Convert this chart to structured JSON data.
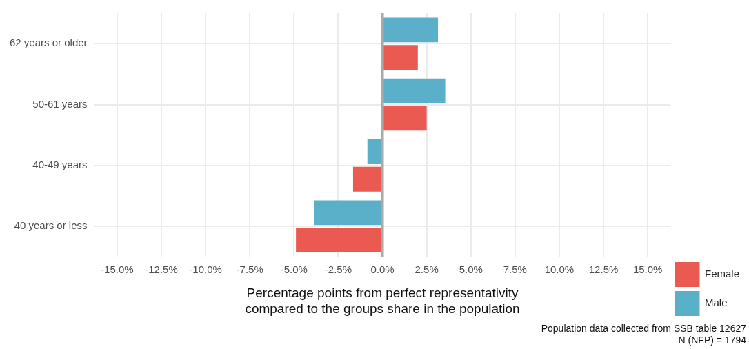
{
  "chart_data": {
    "type": "bar",
    "orientation": "horizontal",
    "categories": [
      "62 years or older",
      "50-61 years",
      "40-49 years",
      "40 years or less"
    ],
    "series": [
      {
        "name": "Female",
        "color": "#eb5a50",
        "values": [
          2.0,
          2.5,
          -1.66,
          -4.89
        ]
      },
      {
        "name": "Male",
        "color": "#5ab0c8",
        "values": [
          3.14,
          3.55,
          -0.85,
          -3.86
        ]
      }
    ],
    "xlim": [
      -16.3,
      16.3
    ],
    "xticks": [
      {
        "value": -15,
        "label": "-15.0%"
      },
      {
        "value": -12.5,
        "label": "-12.5%"
      },
      {
        "value": -10,
        "label": "-10.0%"
      },
      {
        "value": -7.5,
        "label": "-7.5%"
      },
      {
        "value": -5,
        "label": "-5.0%"
      },
      {
        "value": -2.5,
        "label": "-2.5%"
      },
      {
        "value": 0,
        "label": "0.0%"
      },
      {
        "value": 2.5,
        "label": "2.5%"
      },
      {
        "value": 5,
        "label": "5.0%"
      },
      {
        "value": 7.5,
        "label": "7.5%"
      },
      {
        "value": 10,
        "label": "10.0%"
      },
      {
        "value": 12.5,
        "label": "12.5%"
      },
      {
        "value": 15,
        "label": "15.0%"
      }
    ],
    "xlabel": "Percentage points from perfect representativity\ncompared to the groups share in the population",
    "ref_lines": [
      {
        "axis": "x",
        "value": 0,
        "color": "#aaaaaa"
      }
    ],
    "grid": true,
    "legend": "bottom right",
    "annotations": [
      "Population data collected from SSB table 12627",
      "N (NFP) = 1794"
    ]
  }
}
